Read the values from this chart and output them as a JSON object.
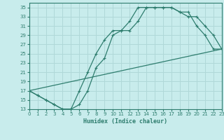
{
  "xlabel": "Humidex (Indice chaleur)",
  "bg_color": "#c8ecec",
  "grid_color": "#b0d8d8",
  "line_color": "#2e7d6e",
  "xlim": [
    0,
    23
  ],
  "ylim": [
    13,
    36
  ],
  "xticks": [
    0,
    1,
    2,
    3,
    4,
    5,
    6,
    7,
    8,
    9,
    10,
    11,
    12,
    13,
    14,
    15,
    16,
    17,
    18,
    19,
    20,
    21,
    22,
    23
  ],
  "yticks": [
    13,
    15,
    17,
    19,
    21,
    23,
    25,
    27,
    29,
    31,
    33,
    35
  ],
  "curve1_x": [
    0,
    1,
    2,
    3,
    4,
    5,
    6,
    7,
    8,
    9,
    10,
    11,
    12,
    13,
    14,
    15,
    16,
    17,
    18,
    19,
    20,
    21,
    22,
    23
  ],
  "curve1_y": [
    17,
    16,
    15,
    14,
    13,
    13,
    17,
    21,
    25,
    28,
    30,
    30,
    32,
    35,
    35,
    35,
    35,
    35,
    34,
    34,
    31,
    29,
    26,
    26
  ],
  "curve2_x": [
    0,
    1,
    2,
    3,
    4,
    5,
    6,
    7,
    8,
    9,
    10,
    11,
    12,
    13,
    14,
    15,
    16,
    17,
    18,
    19,
    20,
    21,
    22,
    23
  ],
  "curve2_y": [
    17,
    16,
    15,
    14,
    13,
    13,
    14,
    17,
    22,
    24,
    29,
    30,
    30,
    32,
    35,
    35,
    35,
    35,
    34,
    33,
    33,
    31,
    29,
    26
  ],
  "curve3_x": [
    0,
    23
  ],
  "curve3_y": [
    17,
    26
  ]
}
